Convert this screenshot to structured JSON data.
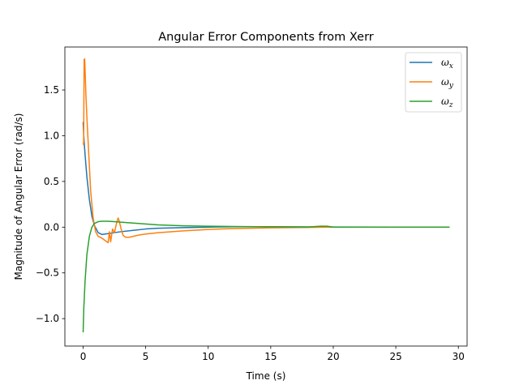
{
  "chart_data": {
    "type": "line",
    "title": "Angular Error Components from Xerr",
    "xlabel": "Time (s)",
    "ylabel": "Magnitude of Angular Error (rad/s)",
    "xlim": [
      -1.46,
      30.7
    ],
    "ylim": [
      -1.3,
      1.97
    ],
    "xticks": [
      0,
      5,
      10,
      15,
      20,
      25,
      30
    ],
    "xtick_labels": [
      "0",
      "5",
      "10",
      "15",
      "20",
      "25",
      "30"
    ],
    "yticks": [
      -1.0,
      -0.5,
      0.0,
      0.5,
      1.0,
      1.5
    ],
    "ytick_labels": [
      "−1.0",
      "−0.5",
      "0.0",
      "0.5",
      "1.0",
      "1.5"
    ],
    "grid": false,
    "legend_position": "top-right",
    "series": [
      {
        "name": "ωx",
        "name_base": "ω",
        "name_sub": "x",
        "color": "#1f77b4",
        "x": [
          0,
          0.05,
          0.15,
          0.3,
          0.5,
          0.7,
          0.9,
          1.2,
          1.5,
          2.0,
          2.5,
          3.0,
          4.0,
          5.0,
          6.0,
          8.0,
          10.0,
          12.0,
          15.0,
          18.0,
          20.0,
          25.0,
          29.3
        ],
        "y": [
          1.15,
          1.0,
          0.8,
          0.55,
          0.3,
          0.12,
          0.02,
          -0.06,
          -0.08,
          -0.07,
          -0.06,
          -0.05,
          -0.035,
          -0.02,
          -0.012,
          -0.005,
          0.0,
          0.005,
          0.005,
          0.003,
          0.002,
          0.0,
          0.0
        ]
      },
      {
        "name": "ωy",
        "name_base": "ω",
        "name_sub": "y",
        "color": "#ff7f0e",
        "x": [
          0,
          0.04,
          0.08,
          0.12,
          0.16,
          0.22,
          0.3,
          0.45,
          0.6,
          0.8,
          1.0,
          1.2,
          1.5,
          1.8,
          2.0,
          2.1,
          2.2,
          2.35,
          2.5,
          2.6,
          2.7,
          2.8,
          2.9,
          3.0,
          3.1,
          3.2,
          3.4,
          3.7,
          4.0,
          4.5,
          5.0,
          6.0,
          8.0,
          10.0,
          12.0,
          15.0,
          18.0,
          20.0,
          25.0,
          29.3
        ],
        "y": [
          0.92,
          0.9,
          1.83,
          1.84,
          1.7,
          1.45,
          1.2,
          0.8,
          0.4,
          0.1,
          -0.05,
          -0.1,
          -0.12,
          -0.15,
          -0.17,
          -0.05,
          -0.16,
          -0.02,
          -0.06,
          0.0,
          0.06,
          0.1,
          0.06,
          0.0,
          -0.05,
          -0.09,
          -0.11,
          -0.11,
          -0.1,
          -0.085,
          -0.075,
          -0.06,
          -0.04,
          -0.025,
          -0.015,
          -0.007,
          -0.003,
          0.0,
          0.0,
          0.0
        ]
      },
      {
        "name": "ωz",
        "name_base": "ω",
        "name_sub": "z",
        "color": "#2ca02c",
        "x": [
          0,
          0.05,
          0.15,
          0.3,
          0.5,
          0.7,
          0.9,
          1.2,
          1.5,
          2.0,
          2.5,
          3.0,
          4.0,
          5.0,
          6.0,
          8.0,
          10.0,
          12.0,
          15.0,
          18.0,
          19.0,
          19.5,
          20.0,
          25.0,
          29.3
        ],
        "y": [
          -1.15,
          -0.9,
          -0.6,
          -0.3,
          -0.1,
          0.0,
          0.04,
          0.06,
          0.065,
          0.065,
          0.06,
          0.055,
          0.045,
          0.035,
          0.025,
          0.015,
          0.01,
          0.007,
          0.004,
          0.002,
          0.01,
          0.01,
          0.0,
          0.0,
          0.0
        ]
      }
    ]
  }
}
